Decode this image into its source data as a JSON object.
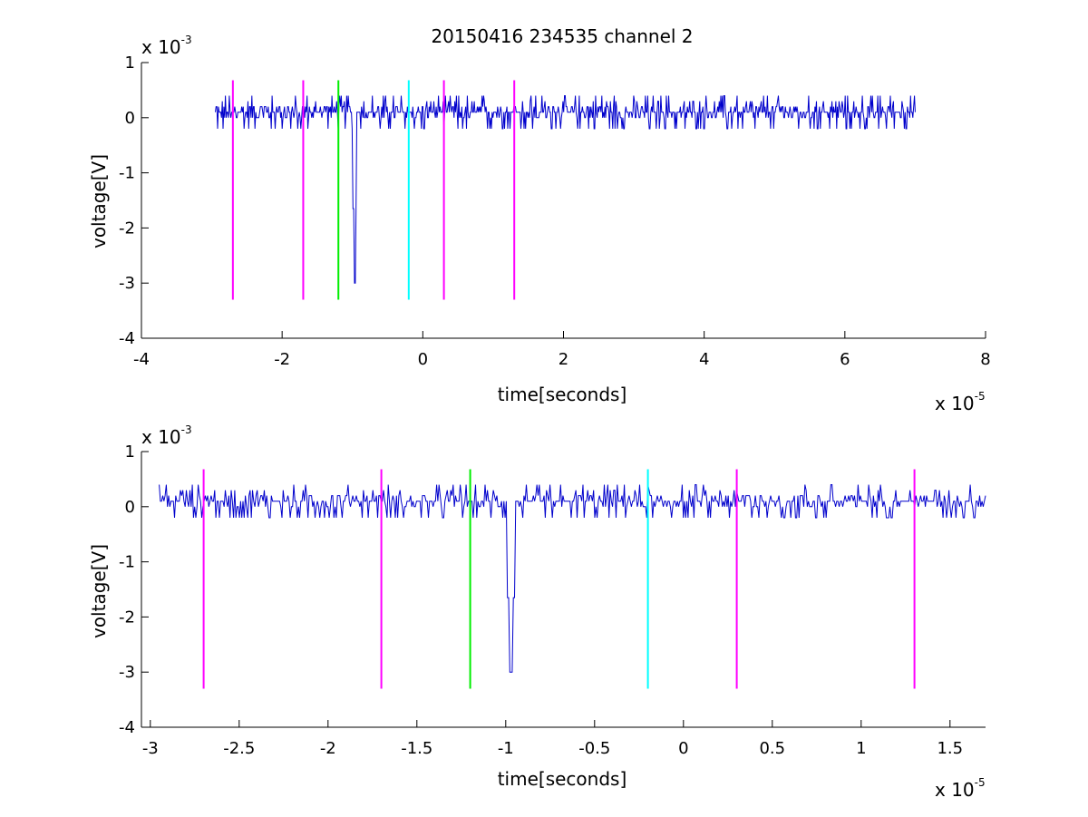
{
  "figure": {
    "title": "20150416 234535 channel 2"
  },
  "chart_data": [
    {
      "type": "line",
      "panel": "top",
      "xlabel": "time[seconds]",
      "ylabel": "voltage[V]",
      "x_multiplier_text": "x 10",
      "x_multiplier_exp": "-5",
      "y_multiplier_text": "x 10",
      "y_multiplier_exp": "-3",
      "xlim": [
        -4,
        8
      ],
      "ylim": [
        -4,
        1
      ],
      "xticks": [
        -4,
        -2,
        0,
        2,
        4,
        6,
        8
      ],
      "xtick_labels": [
        "-4",
        "-2",
        "0",
        "2",
        "4",
        "6",
        "8"
      ],
      "yticks": [
        -4,
        -3,
        -2,
        -1,
        0,
        1
      ],
      "ytick_labels": [
        "-4",
        "-3",
        "-2",
        "-1",
        "0",
        "1"
      ],
      "grid": false,
      "signal": {
        "color": "#0000cc",
        "x_range": [
          -2.95,
          7.0
        ],
        "baseline": 0.1,
        "spike_x": -0.97,
        "spike_min": -3.0
      },
      "markers": [
        {
          "x": -2.7,
          "color": "#ff00ff",
          "ymin": -3.3,
          "ymax": 0.68
        },
        {
          "x": -1.7,
          "color": "#ff00ff",
          "ymin": -3.3,
          "ymax": 0.68
        },
        {
          "x": -1.2,
          "color": "#00ee00",
          "ymin": -3.3,
          "ymax": 0.68
        },
        {
          "x": -0.2,
          "color": "#00ffff",
          "ymin": -3.3,
          "ymax": 0.68
        },
        {
          "x": 0.3,
          "color": "#ff00ff",
          "ymin": -3.3,
          "ymax": 0.68
        },
        {
          "x": 1.3,
          "color": "#ff00ff",
          "ymin": -3.3,
          "ymax": 0.68
        }
      ]
    },
    {
      "type": "line",
      "panel": "bottom",
      "xlabel": "time[seconds]",
      "ylabel": "voltage[V]",
      "x_multiplier_text": "x 10",
      "x_multiplier_exp": "-5",
      "y_multiplier_text": "x 10",
      "y_multiplier_exp": "-3",
      "xlim": [
        -3.05,
        1.7
      ],
      "ylim": [
        -4,
        1
      ],
      "xticks": [
        -3,
        -2.5,
        -2,
        -1.5,
        -1,
        -0.5,
        0,
        0.5,
        1,
        1.5
      ],
      "xtick_labels": [
        "-3",
        "-2.5",
        "-2",
        "-1.5",
        "-1",
        "-0.5",
        "0",
        "0.5",
        "1",
        "1.5"
      ],
      "yticks": [
        -4,
        -3,
        -2,
        -1,
        0,
        1
      ],
      "ytick_labels": [
        "-4",
        "-3",
        "-2",
        "-1",
        "0",
        "1"
      ],
      "grid": false,
      "signal": {
        "color": "#0000cc",
        "x_range": [
          -2.95,
          1.7
        ],
        "baseline": 0.1,
        "spike_x": -0.97,
        "spike_min": -3.0
      },
      "markers": [
        {
          "x": -2.7,
          "color": "#ff00ff",
          "ymin": -3.3,
          "ymax": 0.68
        },
        {
          "x": -1.7,
          "color": "#ff00ff",
          "ymin": -3.3,
          "ymax": 0.68
        },
        {
          "x": -1.2,
          "color": "#00ee00",
          "ymin": -3.3,
          "ymax": 0.68
        },
        {
          "x": -0.2,
          "color": "#00ffff",
          "ymin": -3.3,
          "ymax": 0.68
        },
        {
          "x": 0.3,
          "color": "#ff00ff",
          "ymin": -3.3,
          "ymax": 0.68
        },
        {
          "x": 1.3,
          "color": "#ff00ff",
          "ymin": -3.3,
          "ymax": 0.68
        }
      ]
    }
  ]
}
